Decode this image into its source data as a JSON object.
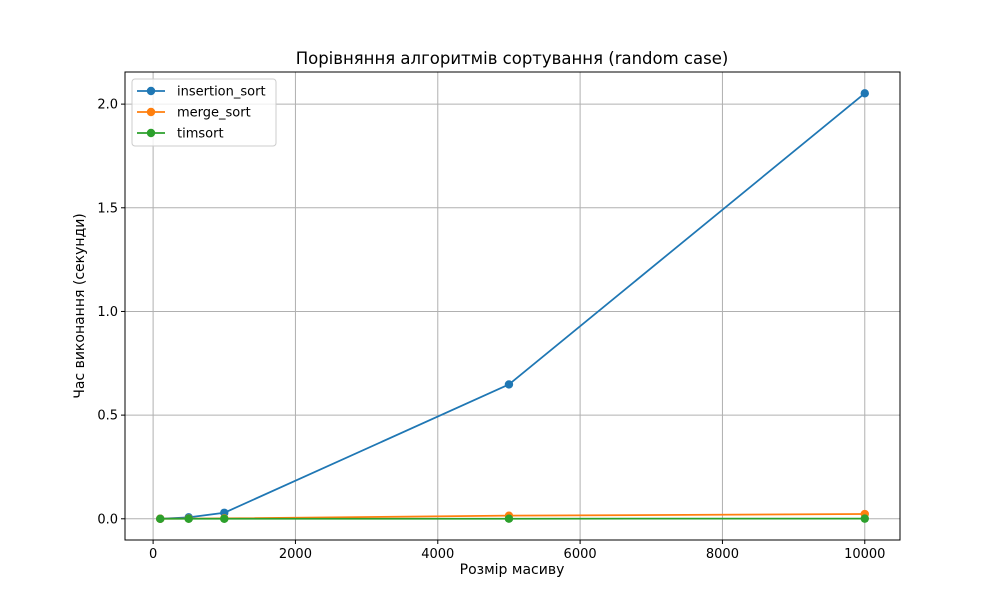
{
  "chart_data": {
    "type": "line",
    "title": "Порівняння алгоритмів сортування (random case)",
    "xlabel": "Розмір масиву",
    "ylabel": "Час виконання (секунди)",
    "x": [
      100,
      500,
      1000,
      5000,
      10000
    ],
    "series": [
      {
        "name": "insertion_sort",
        "color": "#1f77b4",
        "values": [
          0.0003,
          0.007,
          0.029,
          0.648,
          2.052
        ]
      },
      {
        "name": "merge_sort",
        "color": "#ff7f0e",
        "values": [
          0.0002,
          0.001,
          0.002,
          0.015,
          0.023
        ]
      },
      {
        "name": "timsort",
        "color": "#2ca02c",
        "values": [
          1e-05,
          3e-05,
          5e-05,
          0.0004,
          0.0008
        ]
      }
    ],
    "xlim": [
      -395,
      10495
    ],
    "ylim": [
      -0.1023,
      2.1549
    ],
    "xticks": [
      0,
      2000,
      4000,
      6000,
      8000,
      10000
    ],
    "yticks": [
      0.0,
      0.5,
      1.0,
      1.5,
      2.0
    ],
    "ytick_labels": [
      "0.0",
      "0.5",
      "1.0",
      "1.5",
      "2.0"
    ],
    "grid": true,
    "legend_position": "upper-left"
  }
}
